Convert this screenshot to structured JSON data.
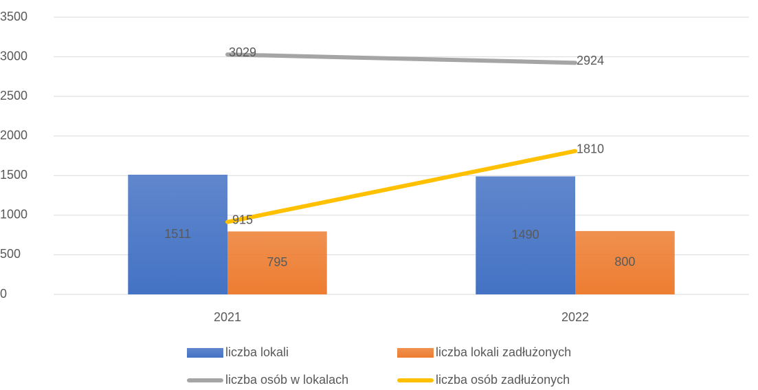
{
  "chart_data": {
    "type": "bar",
    "categories": [
      "2021",
      "2022"
    ],
    "series": [
      {
        "name": "liczba lokali",
        "type": "bar",
        "color": "#4472c4",
        "values": [
          1511,
          1490
        ]
      },
      {
        "name": "liczba lokali zadłużonych",
        "type": "bar",
        "color": "#ed7d31",
        "values": [
          795,
          800
        ]
      },
      {
        "name": "liczba osób w lokalach",
        "type": "line",
        "color": "#a5a5a5",
        "values": [
          3029,
          2924
        ]
      },
      {
        "name": "liczba osób zadłużonych",
        "type": "line",
        "color": "#ffc000",
        "values": [
          915,
          1810
        ]
      }
    ],
    "ylim": [
      0,
      3500
    ],
    "yticks": [
      0,
      500,
      1000,
      1500,
      2000,
      2500,
      3000,
      3500
    ],
    "grid": true,
    "legend": "bottom"
  }
}
